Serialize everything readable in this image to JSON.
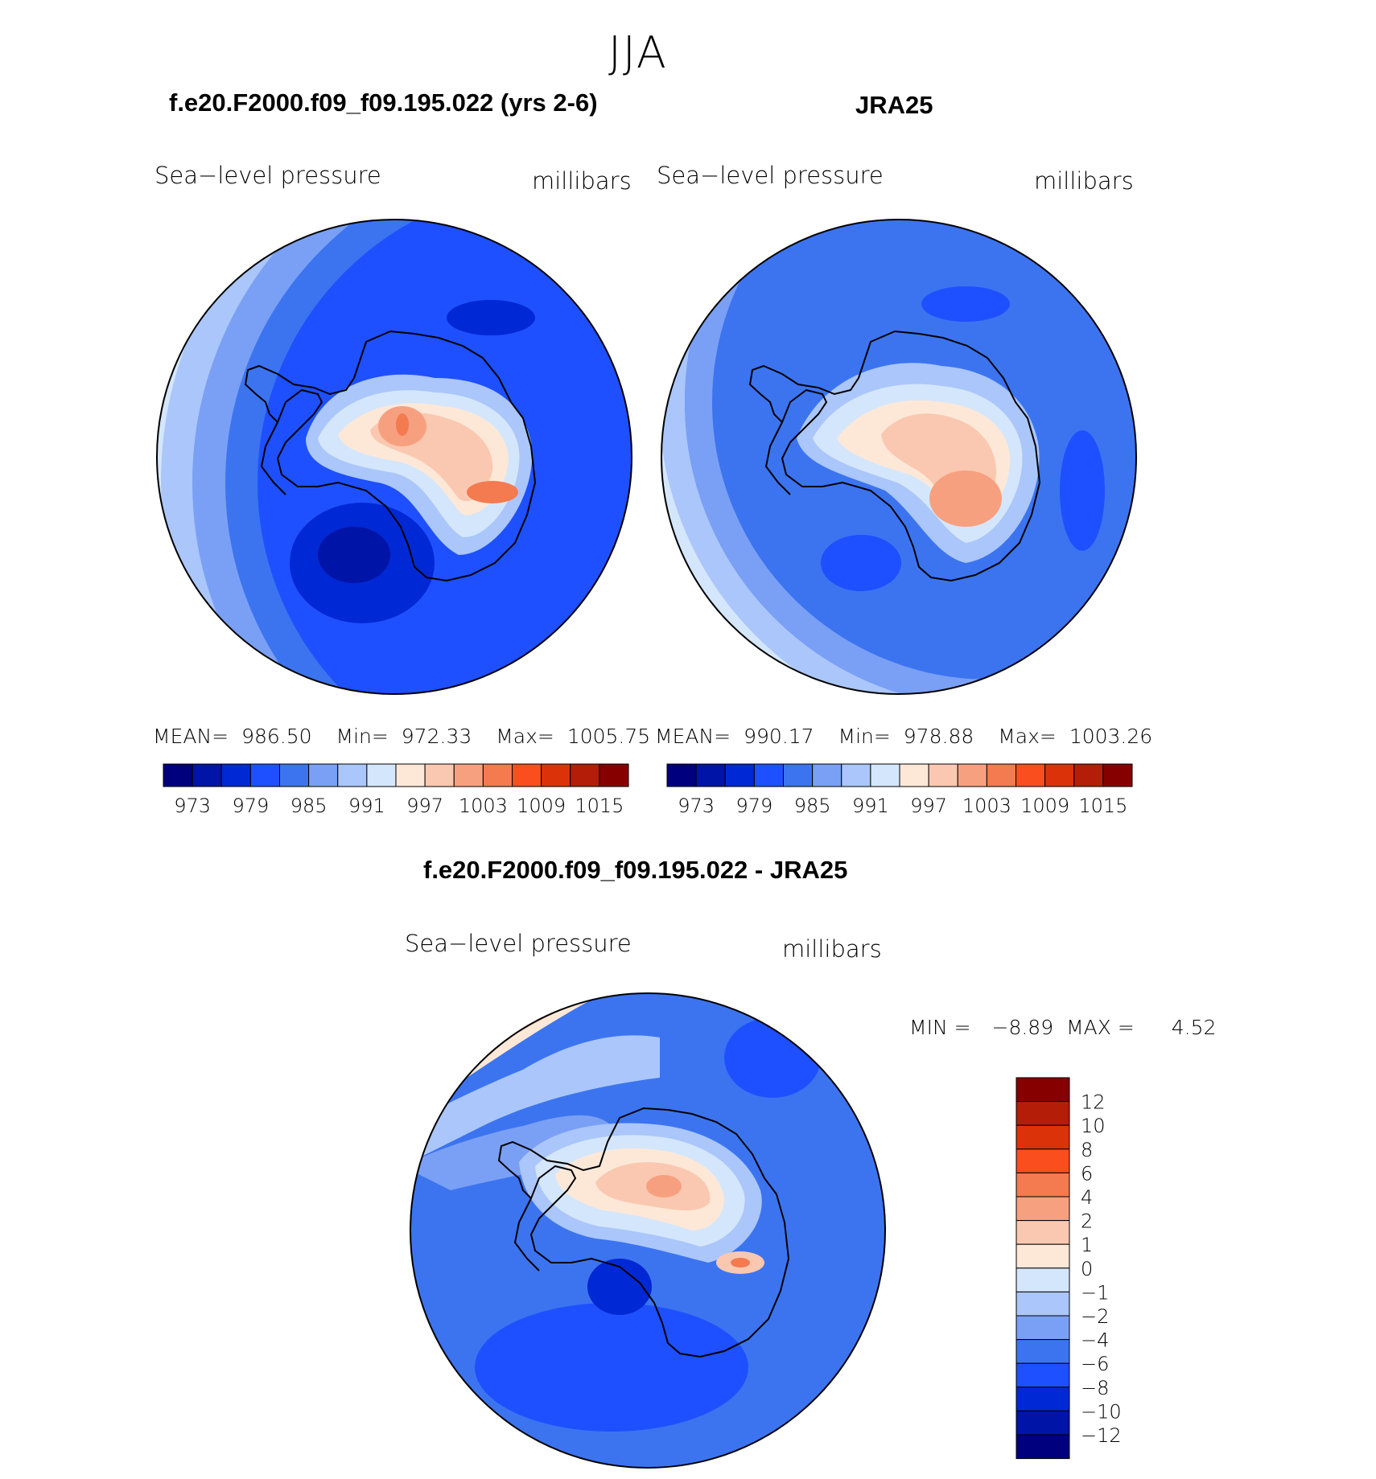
{
  "figure": {
    "season": "JJA",
    "panels": [
      {
        "id": "model",
        "title": "f.e20.F2000.f09_f09.195.022 (yrs 2-6)",
        "variable": "Sea−level pressure",
        "units": "millibars",
        "stats": {
          "mean_label": "MEAN=",
          "mean": "986.50",
          "min_label": "Min=",
          "min": "972.33",
          "max_label": "Max=",
          "max": "1005.75"
        }
      },
      {
        "id": "obs",
        "title": "JRA25",
        "variable": "Sea−level pressure",
        "units": "millibars",
        "stats": {
          "mean_label": "MEAN=",
          "mean": "990.17",
          "min_label": "Min=",
          "min": "978.88",
          "max_label": "Max=",
          "max": "1003.26"
        }
      },
      {
        "id": "diff",
        "title": "f.e20.F2000.f09_f09.195.022 - JRA25",
        "variable": "Sea−level pressure",
        "units": "millibars",
        "stats": {
          "min_label": "MIN =",
          "min": "−8.89",
          "max_label": "MAX =",
          "max": "4.52"
        }
      }
    ]
  },
  "chart_data": {
    "type": "heatmap",
    "projection": "south-polar-stereographic",
    "field": "Sea-level pressure",
    "units": "millibars",
    "season": "JJA",
    "absolute_colorbar": {
      "levels": [
        973,
        976,
        979,
        982,
        985,
        988,
        991,
        994,
        997,
        1000,
        1003,
        1006,
        1009,
        1012,
        1015
      ],
      "tick_labels": [
        "973",
        "979",
        "985",
        "991",
        "997",
        "1003",
        "1009",
        "1015"
      ],
      "colors": [
        "#00007f",
        "#0014a8",
        "#0028d4",
        "#1e50ff",
        "#3c74f0",
        "#7aa0f5",
        "#aac6fa",
        "#d4e6fb",
        "#fde8d8",
        "#fac8b0",
        "#f7a080",
        "#f47a4f",
        "#fa4e1e",
        "#dc320a",
        "#b41e08",
        "#870000"
      ]
    },
    "difference_colorbar": {
      "levels": [
        -12,
        -10,
        -8,
        -6,
        -4,
        -2,
        -1,
        0,
        1,
        2,
        4,
        6,
        8,
        10,
        12
      ],
      "tick_labels": [
        "12",
        "10",
        "8",
        "6",
        "4",
        "2",
        "1",
        "0",
        "−1",
        "−2",
        "−4",
        "−6",
        "−8",
        "−10",
        "−12"
      ],
      "colors_top_to_bottom": [
        "#870000",
        "#b41e08",
        "#dc320a",
        "#fa4e1e",
        "#f47a4f",
        "#f7a080",
        "#fac8b0",
        "#fde8d8",
        "#d4e6fb",
        "#aac6fa",
        "#7aa0f5",
        "#3c74f0",
        "#1e50ff",
        "#0028d4",
        "#0014a8",
        "#00007f"
      ]
    },
    "panels": [
      {
        "name": "f.e20.F2000.f09_f09.195.022 (yrs 2-6)",
        "mean": 986.5,
        "min": 972.33,
        "max": 1005.75
      },
      {
        "name": "JRA25",
        "mean": 990.17,
        "min": 978.88,
        "max": 1003.26
      },
      {
        "name": "f.e20.F2000.f09_f09.195.022 - JRA25",
        "min": -8.89,
        "max": 4.52
      }
    ]
  }
}
